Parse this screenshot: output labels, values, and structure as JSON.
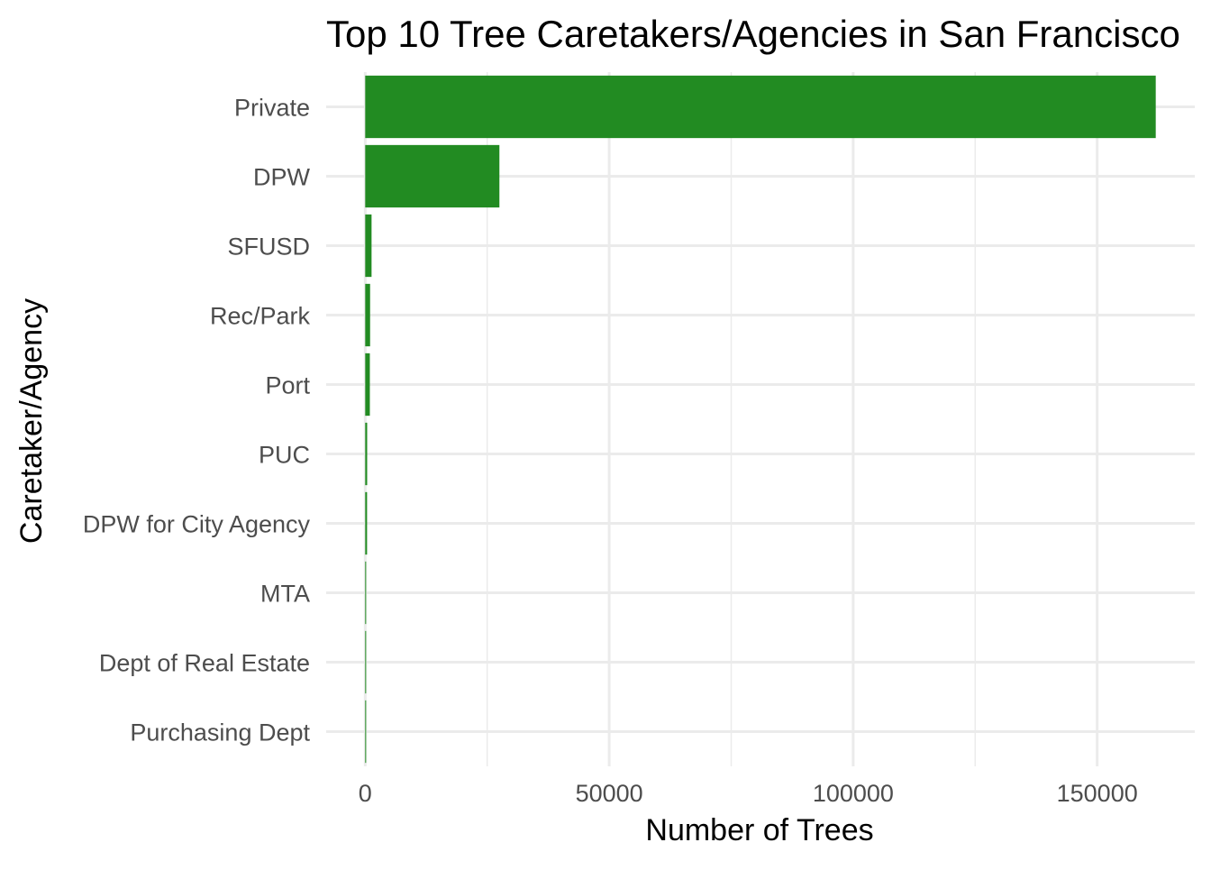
{
  "chart_data": {
    "type": "bar",
    "orientation": "horizontal",
    "title": "Top 10 Tree Caretakers/Agencies in San Francisco",
    "xlabel": "Number of Trees",
    "ylabel": "Caretaker/Agency",
    "categories": [
      "Private",
      "DPW",
      "SFUSD",
      "Rec/Park",
      "Port",
      "PUC",
      "DPW for City Agency",
      "MTA",
      "Dept of Real Estate",
      "Purchasing Dept"
    ],
    "values": [
      162000,
      27500,
      1300,
      1000,
      950,
      400,
      380,
      150,
      120,
      100
    ],
    "xlim": [
      -8000,
      170000
    ],
    "xticks": [
      0,
      50000,
      100000,
      150000
    ],
    "xtick_labels": [
      "0",
      "50000",
      "100000",
      "150000"
    ],
    "grid": true,
    "bar_color": "#228b22",
    "grid_color": "#ebebeb"
  }
}
